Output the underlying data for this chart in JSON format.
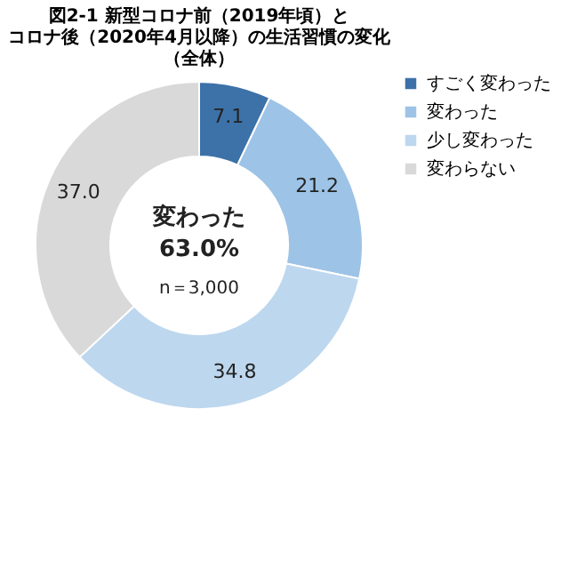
{
  "chart_data": {
    "type": "donut",
    "title": [
      "図2-1  新型コロナ前（2019年頃）と",
      "コロナ後（2020年4月以降）の生活習慣の変化",
      "（全体）"
    ],
    "categories": [
      "すごく変わった",
      "変わった",
      "少し変わった",
      "変わらない"
    ],
    "values": [
      7.1,
      21.2,
      34.8,
      37.0
    ],
    "colors": [
      "#3d72a8",
      "#9dc3e6",
      "#bdd7ee",
      "#d9d9d9"
    ],
    "value_labels": [
      "7.1",
      "21.2",
      "34.8",
      "37.0"
    ],
    "legend": "right",
    "annotations": [
      "変わった",
      "63.0%",
      "n＝3,000"
    ]
  }
}
